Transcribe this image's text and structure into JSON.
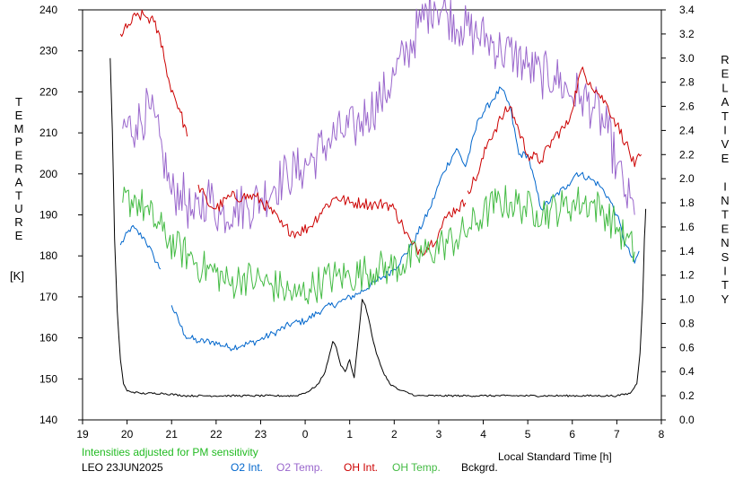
{
  "chart_data": {
    "type": "line",
    "xlabel": "Local Standard Time [h]",
    "ylabel_left_letters": [
      "T",
      "E",
      "M",
      "P",
      "E",
      "R",
      "A",
      "T",
      "U",
      "R",
      "E"
    ],
    "ylabel_left_unit": "[K]",
    "ylabel_right_letters": [
      "R",
      "E",
      "L",
      "A",
      "T",
      "I",
      "V",
      "E",
      "",
      "I",
      "N",
      "T",
      "E",
      "N",
      "S",
      "I",
      "T",
      "Y"
    ],
    "x_ticks": [
      "19",
      "20",
      "21",
      "22",
      "23",
      "0",
      "1",
      "2",
      "3",
      "4",
      "5",
      "6",
      "7",
      "8"
    ],
    "xlim": [
      19,
      32
    ],
    "ylim_left": [
      140,
      240
    ],
    "y_ticks_left": [
      "140",
      "150",
      "160",
      "170",
      "180",
      "190",
      "200",
      "210",
      "220",
      "230",
      "240"
    ],
    "ylim_right": [
      0,
      3.4
    ],
    "y_ticks_right": [
      "0.0",
      "0.2",
      "0.4",
      "0.6",
      "0.8",
      "1.0",
      "1.2",
      "1.4",
      "1.6",
      "1.8",
      "2.0",
      "2.2",
      "2.4",
      "2.6",
      "2.8",
      "3.0",
      "3.2",
      "3.4"
    ],
    "note": "Intensities adjusted for PM sensitivity",
    "station": "LEO 23JUN2025",
    "series": [
      {
        "name": "O2 Int.",
        "color": "#0066cc",
        "axis": "right",
        "x": [
          19.85,
          20.1,
          20.4,
          20.6,
          20.75,
          20.9,
          21.0,
          21.3,
          21.6,
          21.9,
          22.3,
          22.6,
          22.9,
          23.3,
          23.7,
          24.0,
          24.4,
          24.8,
          25.2,
          25.6,
          26.0,
          26.4,
          26.8,
          27.1,
          27.4,
          27.6,
          27.9,
          28.2,
          28.4,
          28.6,
          28.8,
          29.0,
          29.3,
          29.6,
          29.9,
          30.1,
          30.4,
          30.6,
          30.8,
          31.0,
          31.2,
          31.4,
          31.5
        ],
        "y": [
          1.45,
          1.6,
          1.5,
          1.35,
          1.25,
          null,
          0.95,
          0.7,
          0.65,
          0.65,
          0.6,
          0.62,
          0.65,
          0.72,
          0.8,
          0.82,
          0.92,
          0.98,
          1.05,
          1.15,
          1.25,
          1.45,
          1.75,
          2.05,
          2.25,
          2.1,
          2.5,
          2.65,
          2.75,
          2.6,
          2.2,
          2.2,
          1.75,
          1.85,
          1.95,
          2.05,
          2.0,
          1.95,
          1.85,
          1.7,
          1.45,
          1.3,
          1.4
        ]
      },
      {
        "name": "O2 Temp.",
        "color": "#9966cc",
        "axis": "left",
        "x": [
          19.9,
          20.2,
          20.5,
          20.8,
          21.0,
          21.2,
          21.5,
          21.8,
          22.1,
          22.4,
          22.7,
          23.0,
          23.3,
          23.6,
          23.9,
          24.2,
          24.5,
          24.8,
          25.1,
          25.4,
          25.7,
          26.0,
          26.3,
          26.6,
          26.9,
          27.2,
          27.5,
          27.8,
          28.1,
          28.4,
          28.7,
          29.0,
          29.3,
          29.6,
          29.9,
          30.2,
          30.5,
          30.8,
          31.0,
          31.2,
          31.4
        ],
        "y": [
          211,
          212,
          216,
          205,
          195,
          196,
          189,
          195,
          190,
          192,
          192,
          194,
          197,
          200,
          201,
          204,
          208,
          210,
          211,
          215,
          218,
          224,
          230,
          237,
          242,
          239,
          236,
          234,
          233,
          230,
          229,
          226,
          224,
          224,
          220,
          219,
          216,
          210,
          202,
          195,
          190
        ]
      },
      {
        "name": "OH Int.",
        "color": "#cc0000",
        "axis": "right",
        "x": [
          19.85,
          20.0,
          20.2,
          20.4,
          20.6,
          20.8,
          20.9,
          21.05,
          21.2,
          21.35,
          null,
          21.6,
          21.8,
          22.0,
          22.3,
          22.6,
          22.9,
          23.2,
          23.5,
          23.8,
          24.1,
          24.4,
          24.7,
          25.0,
          25.3,
          25.6,
          25.8,
          26.0,
          26.2,
          26.4,
          26.6,
          26.8,
          27.0,
          27.2,
          27.4,
          27.6,
          null,
          27.65,
          27.9,
          28.1,
          28.4,
          28.6,
          28.8,
          29.0,
          29.3,
          29.6,
          29.9,
          30.2,
          30.4,
          30.6,
          30.8,
          31.0,
          31.2,
          31.4,
          31.55
        ],
        "y": [
          3.2,
          3.25,
          3.35,
          3.35,
          3.3,
          3.1,
          2.85,
          2.7,
          2.55,
          2.35,
          null,
          1.95,
          1.8,
          1.75,
          1.85,
          1.85,
          1.85,
          1.75,
          1.6,
          1.55,
          1.6,
          1.75,
          1.85,
          1.8,
          1.8,
          1.78,
          1.8,
          1.75,
          1.6,
          1.45,
          1.4,
          1.45,
          1.55,
          1.7,
          1.75,
          1.8,
          null,
          1.9,
          2.05,
          2.3,
          2.5,
          2.6,
          2.4,
          2.2,
          2.15,
          2.35,
          2.45,
          2.9,
          2.8,
          2.7,
          2.6,
          2.45,
          2.3,
          2.1,
          2.2
        ]
      },
      {
        "name": "OH Temp.",
        "color": "#44bb44",
        "axis": "left",
        "x": [
          19.9,
          20.2,
          20.5,
          20.8,
          21.1,
          21.4,
          21.7,
          22.0,
          22.3,
          22.6,
          22.9,
          23.2,
          23.5,
          23.8,
          24.1,
          24.4,
          24.7,
          25.0,
          25.3,
          25.6,
          25.9,
          26.2,
          26.5,
          26.8,
          27.1,
          27.4,
          27.7,
          28.0,
          28.3,
          28.6,
          28.9,
          29.2,
          29.5,
          29.8,
          30.1,
          30.4,
          30.7,
          31.0,
          31.2,
          31.4
        ],
        "y": [
          193,
          194,
          190,
          186,
          182,
          180,
          177,
          176,
          173,
          175,
          174,
          173,
          172,
          170,
          172,
          174,
          175,
          175,
          176,
          177,
          177,
          178,
          180,
          181,
          183,
          184,
          187,
          190,
          193,
          193,
          192,
          191,
          191,
          192,
          193,
          193,
          191,
          187,
          184,
          181
        ]
      },
      {
        "name": "Bckgrd.",
        "color": "#000000",
        "axis": "right",
        "x": [
          19.62,
          19.67,
          19.72,
          19.78,
          19.85,
          19.92,
          20.0,
          20.3,
          20.8,
          21.3,
          21.8,
          22.3,
          22.8,
          23.3,
          23.8,
          24.1,
          24.3,
          24.45,
          24.55,
          24.62,
          24.7,
          24.8,
          24.9,
          25.0,
          25.1,
          25.2,
          25.28,
          25.35,
          25.42,
          25.5,
          25.6,
          25.75,
          25.9,
          26.1,
          26.5,
          27.0,
          27.5,
          28.0,
          28.5,
          29.0,
          29.5,
          30.0,
          30.5,
          31.0,
          31.3,
          31.45,
          31.52,
          31.58,
          31.62,
          31.65
        ],
        "y": [
          3.0,
          2.4,
          1.5,
          0.9,
          0.5,
          0.3,
          0.24,
          0.22,
          0.22,
          0.2,
          0.2,
          0.2,
          0.2,
          0.2,
          0.2,
          0.24,
          0.3,
          0.4,
          0.55,
          0.65,
          0.6,
          0.45,
          0.4,
          0.5,
          0.35,
          0.7,
          1.0,
          0.95,
          0.85,
          0.7,
          0.55,
          0.4,
          0.3,
          0.25,
          0.2,
          0.2,
          0.2,
          0.2,
          0.2,
          0.2,
          0.2,
          0.2,
          0.2,
          0.2,
          0.22,
          0.3,
          0.55,
          1.0,
          1.5,
          1.75
        ]
      }
    ]
  }
}
